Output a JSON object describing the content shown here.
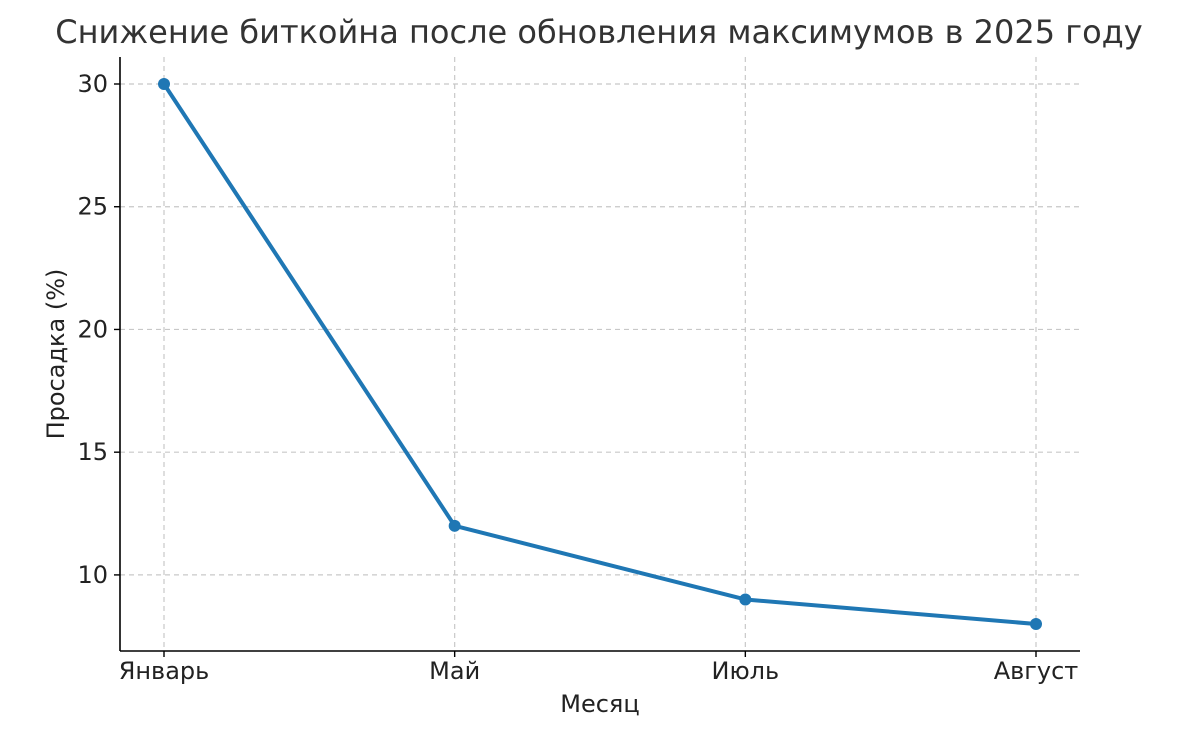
{
  "chart_data": {
    "type": "line",
    "title": "Снижение биткойна после обновления максимумов в 2025 году",
    "xlabel": "Месяц",
    "ylabel": "Просадка (%)",
    "categories": [
      "Январь",
      "Май",
      "Июль",
      "Август"
    ],
    "series": [
      {
        "values": [
          30,
          12,
          9,
          8
        ],
        "color": "#1f77b4"
      }
    ],
    "ylim": [
      6.9,
      31.1
    ],
    "yticks": [
      10,
      15,
      20,
      25,
      30
    ],
    "grid": true,
    "grid_style": "dashed"
  }
}
